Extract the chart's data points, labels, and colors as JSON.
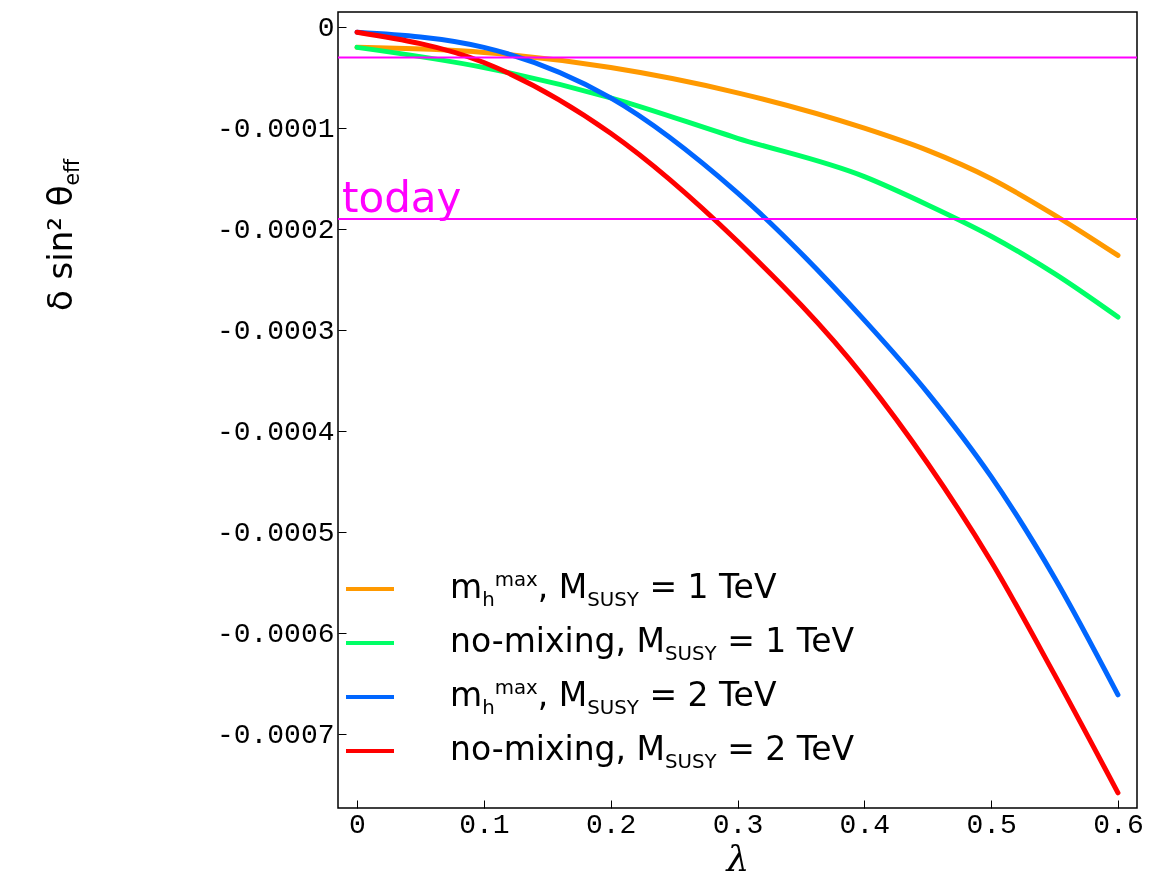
{
  "chart_data": {
    "type": "line",
    "xlabel": "λ",
    "ylabel": "δ sin² θ$_{eff}$",
    "x": [
      0,
      0.1,
      0.2,
      0.3,
      0.4,
      0.45,
      0.5,
      0.55,
      0.6
    ],
    "series": [
      {
        "name": "m$_{h}$$^{max}$, M$_{SUSY}$ = 1 TeV",
        "color": "#ff9900",
        "values": [
          -2e-05,
          -2.5e-05,
          -4e-05,
          -6.5e-05,
          -0.0001,
          -0.000122,
          -0.00015,
          -0.000186,
          -0.000226
        ]
      },
      {
        "name": "no-mixing, M$_{SUSY}$ = 1 TeV",
        "color": "#00ff66",
        "values": [
          -2e-05,
          -4e-05,
          -7e-05,
          -0.00011,
          -0.000148,
          -0.000176,
          -0.000207,
          -0.000244,
          -0.000287
        ]
      },
      {
        "name": "m$_{h}$$^{max}$, M$_{SUSY}$ = 2 TeV",
        "color": "#0066ff",
        "values": [
          -5e-06,
          -2e-05,
          -7e-05,
          -0.000164,
          -0.00029,
          -0.000362,
          -0.000445,
          -0.000545,
          -0.000661
        ]
      },
      {
        "name": "no-mixing, M$_{SUSY}$ = 2 TeV",
        "color": "#ff0000",
        "values": [
          -5e-06,
          -3.5e-05,
          -0.000105,
          -0.000212,
          -0.000347,
          -0.000432,
          -0.000529,
          -0.000641,
          -0.000758
        ]
      }
    ],
    "xlim": [
      -0.015,
      0.615
    ],
    "xticks": [
      0,
      0.1,
      0.2,
      0.3,
      0.4,
      0.5,
      0.6
    ],
    "ylim": [
      -0.000773,
      1.5e-05
    ],
    "yticks": [
      0,
      -0.0001,
      -0.0002,
      -0.0003,
      -0.0004,
      -0.0005,
      -0.0006,
      -0.0007
    ],
    "ref_lines": [
      {
        "axis": "y",
        "value": -3e-05,
        "label": null,
        "color": "#ff00ff"
      },
      {
        "axis": "y",
        "value": -0.00019,
        "label": "today",
        "color": "#ff00ff"
      }
    ],
    "legend": "bottom left",
    "grid": false
  }
}
